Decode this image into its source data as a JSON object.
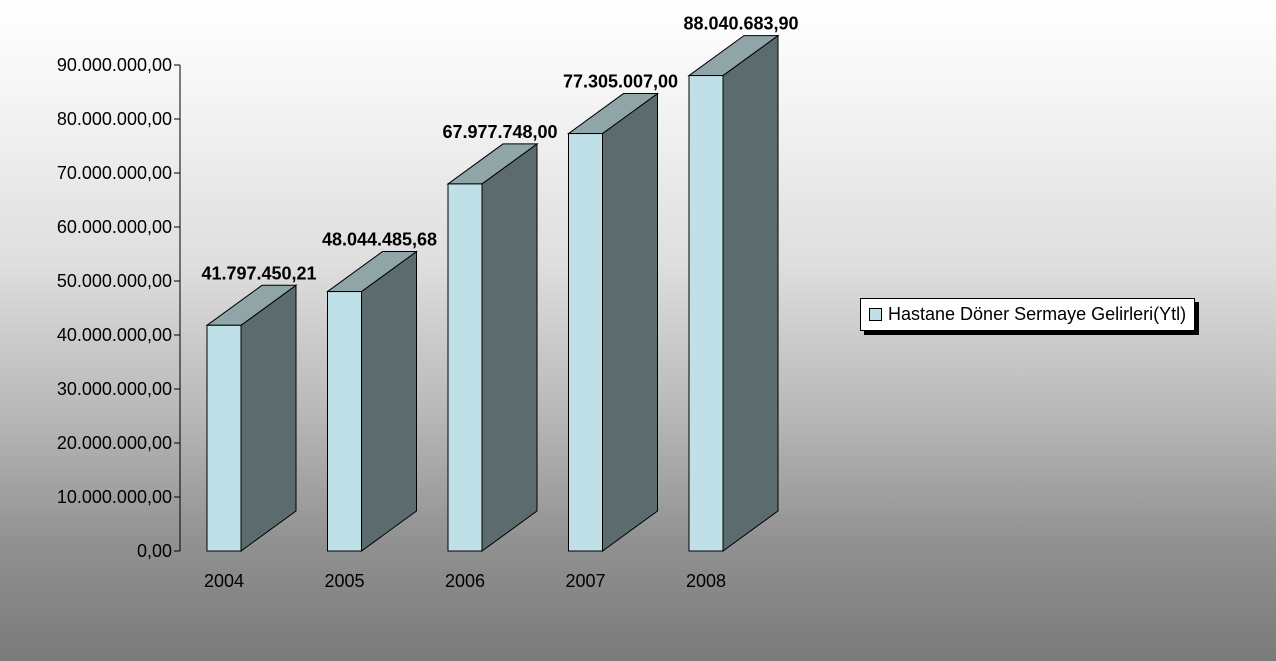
{
  "chart_data": {
    "type": "bar",
    "style": "3d-column",
    "title": "",
    "xlabel": "",
    "ylabel": "",
    "categories": [
      "2004",
      "2005",
      "2006",
      "2007",
      "2008"
    ],
    "series": [
      {
        "name": "Hastane Döner Sermaye Gelirleri(Ytl)",
        "values": [
          41797450.21,
          48044485.68,
          67977748.0,
          77305007.0,
          88040683.9
        ],
        "data_labels": [
          "41.797.450,21",
          "48.044.485,68",
          "67.977.748,00",
          "77.305.007,00",
          "88.040.683,90"
        ]
      }
    ],
    "ylim": [
      0,
      90000000
    ],
    "yticks": [
      0,
      10000000,
      20000000,
      30000000,
      40000000,
      50000000,
      60000000,
      70000000,
      80000000,
      90000000
    ],
    "ytick_labels": [
      "0,00",
      "10.000.000,00",
      "20.000.000,00",
      "30.000.000,00",
      "40.000.000,00",
      "50.000.000,00",
      "60.000.000,00",
      "70.000.000,00",
      "80.000.000,00",
      "90.000.000,00"
    ],
    "grid": false,
    "legend_position": "right",
    "colors": {
      "bar_front": "#bfe0e6",
      "bar_side": "#5c6b6e",
      "bar_top": "#8fa5a8",
      "outline": "#000000",
      "background_top": "#ffffff",
      "background_bottom": "#7a7a7a"
    }
  }
}
